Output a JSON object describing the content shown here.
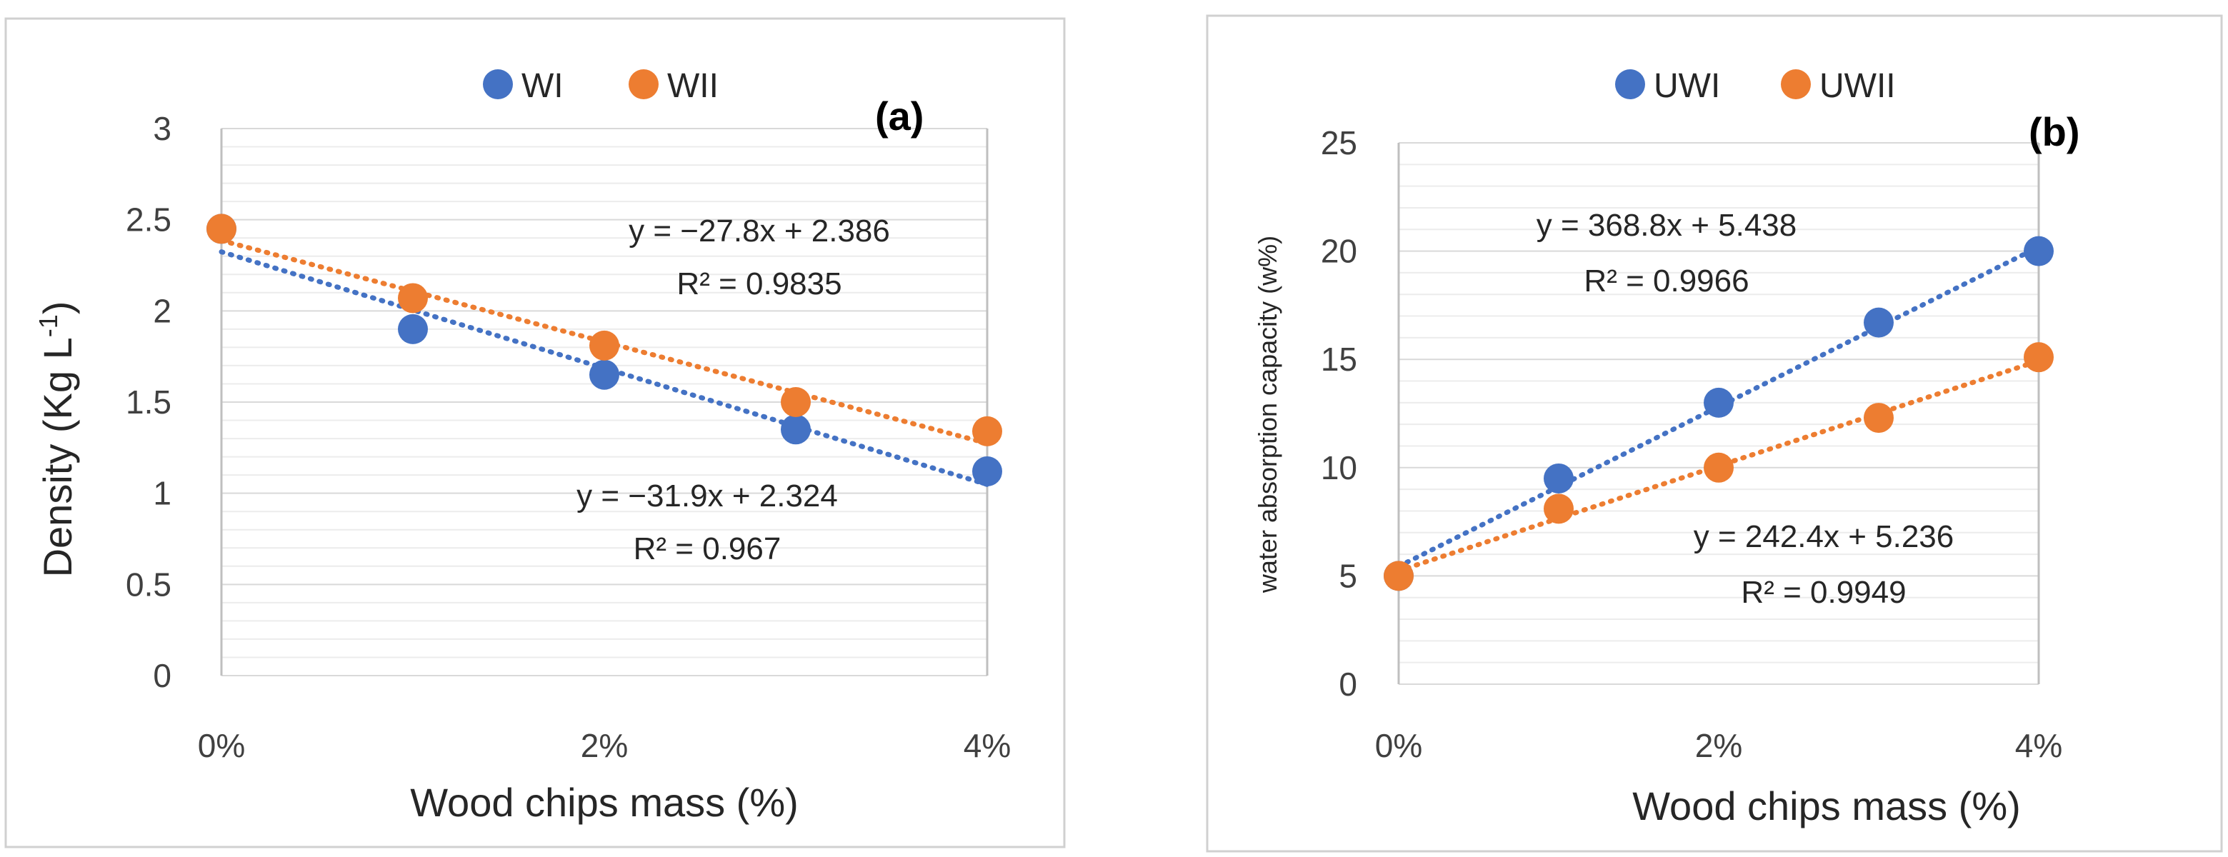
{
  "chart_data": [
    {
      "panel_label": "(a)",
      "type": "scatter",
      "xlabel": "Wood chips mass (%)",
      "ylabel": "Density (Kg L",
      "ylabel_sup": "-1",
      "ylabel_tail": ")",
      "x": [
        0,
        0.01,
        0.02,
        0.03,
        0.04
      ],
      "xlim": [
        0,
        0.04
      ],
      "ylim": [
        0,
        3
      ],
      "x_ticks": [
        0,
        0.02,
        0.04
      ],
      "x_tick_labels": [
        "0%",
        "2%",
        "4%"
      ],
      "y_ticks": [
        0,
        0.5,
        1,
        1.5,
        2,
        2.5,
        3
      ],
      "y_tick_labels": [
        "0",
        "0.5",
        "1",
        "1.5",
        "2",
        "2.5",
        "3"
      ],
      "legend": "top-center",
      "series": [
        {
          "name": "WI",
          "color": "#4472C4",
          "values": [
            2.45,
            1.9,
            1.65,
            1.35,
            1.12
          ],
          "trendline": {
            "slope": -31.9,
            "intercept": 2.324
          },
          "equation": "y = −31.9x + 2.324",
          "r2": "R² = 0.967"
        },
        {
          "name": "WII",
          "color": "#ED7D31",
          "values": [
            2.45,
            2.07,
            1.81,
            1.5,
            1.34
          ],
          "trendline": {
            "slope": -27.8,
            "intercept": 2.386
          },
          "equation": "y = −27.8x + 2.386",
          "r2": "R² = 0.9835"
        }
      ]
    },
    {
      "panel_label": "(b)",
      "type": "scatter",
      "xlabel": "Wood chips mass (%)",
      "ylabel": "water absorption capacity (w%)",
      "x": [
        0,
        0.01,
        0.02,
        0.03,
        0.04
      ],
      "xlim": [
        0,
        0.04
      ],
      "ylim": [
        0,
        25
      ],
      "x_ticks": [
        0,
        0.02,
        0.04
      ],
      "x_tick_labels": [
        "0%",
        "2%",
        "4%"
      ],
      "y_ticks": [
        0,
        5,
        10,
        15,
        20,
        25
      ],
      "y_tick_labels": [
        "0",
        "5",
        "10",
        "15",
        "20",
        "25"
      ],
      "legend": "top-center",
      "series": [
        {
          "name": "UWI",
          "color": "#4472C4",
          "values": [
            5,
            9.5,
            13,
            16.7,
            20
          ],
          "trendline": {
            "slope": 368.8,
            "intercept": 5.438
          },
          "equation": "y = 368.8x + 5.438",
          "r2": "R² = 0.9966"
        },
        {
          "name": "UWII",
          "color": "#ED7D31",
          "values": [
            5,
            8.1,
            10,
            12.3,
            15.1
          ],
          "trendline": {
            "slope": 242.4,
            "intercept": 5.236
          },
          "equation": "y = 242.4x + 5.236",
          "r2": "R² = 0.9949"
        }
      ]
    }
  ]
}
